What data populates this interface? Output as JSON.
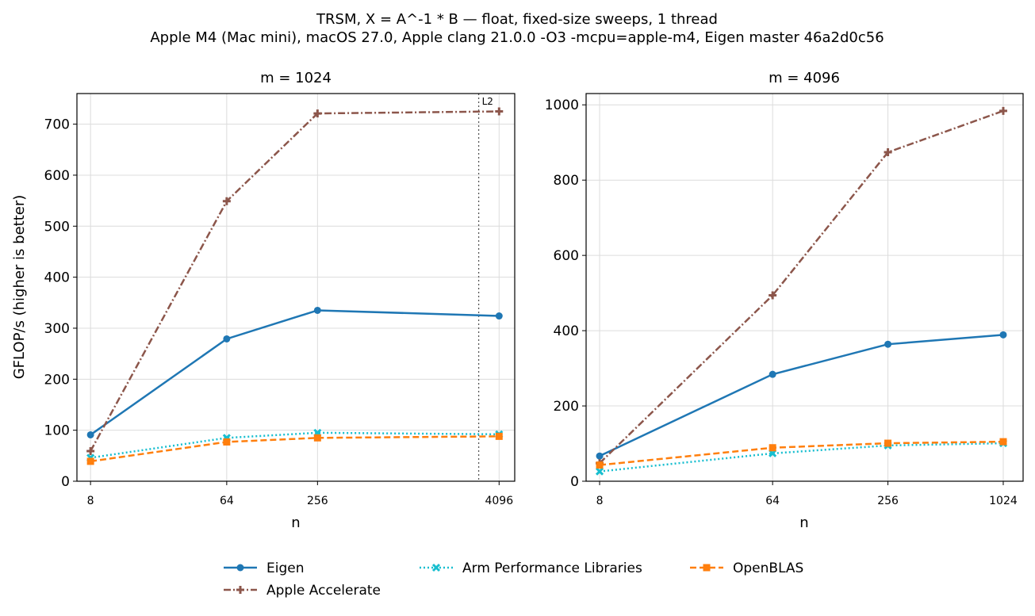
{
  "figure": {
    "title_line1": "TRSM, X = A^-1 * B — float, fixed-size sweeps, 1 thread",
    "title_line2": "Apple M4 (Mac mini), macOS 27.0, Apple clang 21.0.0 -O3 -mcpu=apple-m4, Eigen master 46a2d0c56"
  },
  "legend": {
    "placement": "bottom-center",
    "entries": [
      "Eigen",
      "Apple Accelerate",
      "Arm Performance Libraries",
      "OpenBLAS"
    ]
  },
  "styles": {
    "Eigen": {
      "color": "#1f77b4",
      "dash": "",
      "marker": "circle"
    },
    "Apple Accelerate": {
      "color": "#8c564b",
      "dash": "dashdot",
      "marker": "plus"
    },
    "Arm Performance Libraries": {
      "color": "#17becf",
      "dash": "dotted",
      "marker": "x"
    },
    "OpenBLAS": {
      "color": "#ff7f0e",
      "dash": "dashed",
      "marker": "square"
    }
  },
  "chart_data": [
    {
      "type": "line",
      "title": "m = 1024",
      "xlabel": "n",
      "ylabel": "GFLOP/s (higher is better)",
      "xscale": "log2",
      "x": [
        8,
        64,
        256,
        4096
      ],
      "xticks": [
        "8",
        "64",
        "256",
        "4096"
      ],
      "ylim": [
        0,
        760
      ],
      "yticks": [
        0,
        100,
        200,
        300,
        400,
        500,
        600,
        700
      ],
      "grid": true,
      "vline": {
        "x": 3000,
        "label": "L2"
      },
      "series": [
        {
          "name": "Eigen",
          "values": [
            91,
            279,
            335,
            324
          ]
        },
        {
          "name": "Apple Accelerate",
          "values": [
            59,
            549,
            721,
            725
          ]
        },
        {
          "name": "Arm Performance Libraries",
          "values": [
            46,
            85,
            95,
            92
          ]
        },
        {
          "name": "OpenBLAS",
          "values": [
            39,
            77,
            85,
            88
          ]
        }
      ]
    },
    {
      "type": "line",
      "title": "m = 4096",
      "xlabel": "n",
      "ylabel": "",
      "xscale": "log2",
      "x": [
        8,
        64,
        256,
        1024
      ],
      "xticks": [
        "8",
        "64",
        "256",
        "1024"
      ],
      "ylim": [
        0,
        1030
      ],
      "yticks": [
        0,
        200,
        400,
        600,
        800,
        1000
      ],
      "grid": true,
      "series": [
        {
          "name": "Eigen",
          "values": [
            67,
            284,
            364,
            389
          ]
        },
        {
          "name": "Apple Accelerate",
          "values": [
            48,
            494,
            874,
            984
          ]
        },
        {
          "name": "Arm Performance Libraries",
          "values": [
            26,
            74,
            95,
            101
          ]
        },
        {
          "name": "OpenBLAS",
          "values": [
            43,
            89,
            101,
            105
          ]
        }
      ]
    }
  ]
}
